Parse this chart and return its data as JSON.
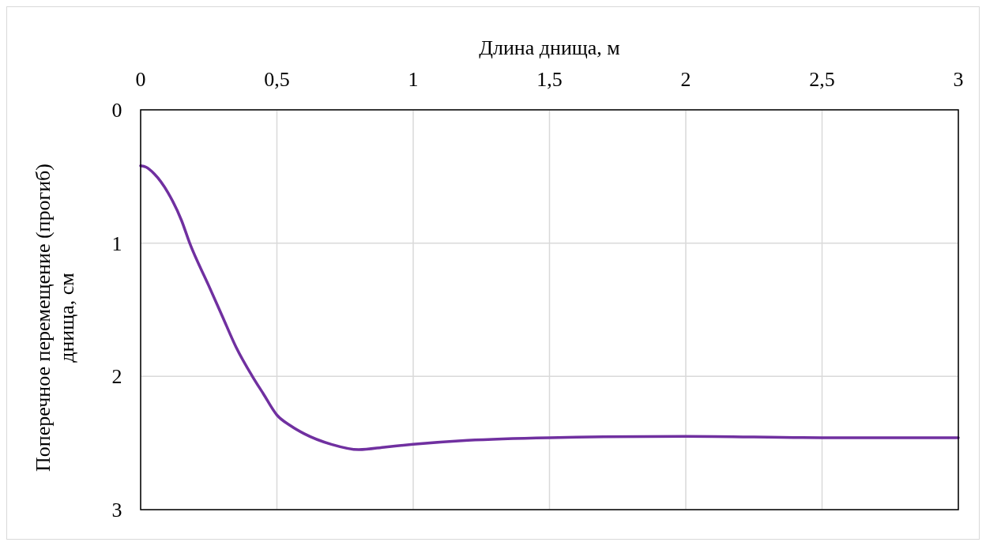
{
  "chart_data": {
    "type": "line",
    "xlabel": "Длина днища, м",
    "ylabel": "Поперечное перемещение (прогиб) днища, см",
    "x": [
      0,
      0.02,
      0.05,
      0.1,
      0.15,
      0.18,
      0.25,
      0.3,
      0.35,
      0.41,
      0.45,
      0.5,
      0.55,
      0.6,
      0.7,
      0.8,
      0.9,
      1,
      1.2,
      1.5,
      2,
      2.5,
      3
    ],
    "series": [
      {
        "color": "#7030a0",
        "values": [
          0.42,
          0.43,
          0.48,
          0.62,
          0.83,
          1.0,
          1.32,
          1.55,
          1.78,
          2.0,
          2.13,
          2.29,
          2.37,
          2.43,
          2.51,
          2.55,
          2.53,
          2.51,
          2.48,
          2.46,
          2.45,
          2.46,
          2.46
        ]
      }
    ],
    "xlim": [
      0,
      3
    ],
    "xticks": [
      0,
      {
        "value": 0.5,
        "label": "0,5"
      },
      1,
      {
        "value": 1.5,
        "label": "1,5"
      },
      2,
      {
        "value": 2.5,
        "label": "2,5"
      },
      3
    ],
    "ylim": [
      3,
      0
    ],
    "yticks": [
      0,
      1,
      2,
      3
    ],
    "grid": true,
    "marker": "none",
    "line_style": "solid"
  }
}
